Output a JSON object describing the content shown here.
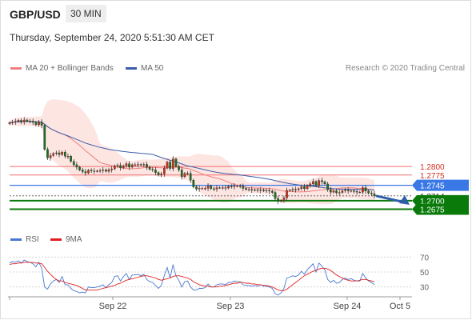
{
  "header": {
    "pair": "GBP/USD",
    "timeframe": "30 MIN",
    "datetime": "Thursday, September 24, 2020 5:51:30 AM CET",
    "credit": "Research © 2020 Trading Central"
  },
  "legends": {
    "ma20": "MA 20 + Bollinger Bands",
    "ma50": "MA 50",
    "rsi": "RSI",
    "ma9": "9MA"
  },
  "colors": {
    "candle_up": "#c7331b",
    "candle_down": "#1d6f1d",
    "ma20": "#f08080",
    "ma50": "#3b5ea8",
    "band_fill": "#fde2df",
    "resistance": "#f07070",
    "pivot": "#3a78e6",
    "support": "#0a7a0a",
    "rsi": "#4a78d0",
    "rsi_ma": "#e02020",
    "arrow": "#2f5ea8"
  },
  "chart_data": [
    {
      "type": "candlestick",
      "name": "GBP/USD 30 MIN price",
      "x_axis": {
        "ticks": [
          "Sep 22",
          "Sep 23",
          "Sep 24",
          "Oct 5"
        ]
      },
      "ylim": [
        1.262,
        1.306
      ],
      "levels": [
        {
          "label": "1.2800",
          "value": 1.28,
          "kind": "resistance"
        },
        {
          "label": "1.2775",
          "value": 1.2775,
          "kind": "resistance"
        },
        {
          "label": "1.2745",
          "value": 1.2745,
          "kind": "pivot"
        },
        {
          "label": "1.2714",
          "value": 1.2714,
          "kind": "last"
        },
        {
          "label": "1.2700",
          "value": 1.27,
          "kind": "support"
        },
        {
          "label": "1.2675",
          "value": 1.2675,
          "kind": "support"
        }
      ],
      "close": [
        1.2928,
        1.293,
        1.2932,
        1.2935,
        1.293,
        1.2936,
        1.2933,
        1.2932,
        1.2929,
        1.2922,
        1.293,
        1.292,
        1.285,
        1.2825,
        1.2832,
        1.2838,
        1.284,
        1.2835,
        1.2842,
        1.283,
        1.283,
        1.2815,
        1.2805,
        1.2798,
        1.279,
        1.2785,
        1.2781,
        1.2789,
        1.2787,
        1.2786,
        1.2787,
        1.2788,
        1.279,
        1.2786,
        1.279,
        1.2793,
        1.2802,
        1.2803,
        1.2796,
        1.2802,
        1.2808,
        1.2798,
        1.2805,
        1.2805,
        1.2806,
        1.2804,
        1.2806,
        1.2798,
        1.2792,
        1.279,
        1.2782,
        1.2775,
        1.2778,
        1.2795,
        1.2813,
        1.2794,
        1.2822,
        1.28,
        1.279,
        1.277,
        1.278,
        1.278,
        1.276,
        1.274,
        1.2734,
        1.2736,
        1.2736,
        1.2736,
        1.2743,
        1.2735,
        1.2734,
        1.2738,
        1.2738,
        1.2738,
        1.2737,
        1.2742,
        1.2741,
        1.2743,
        1.2743,
        1.2742,
        1.2736,
        1.2733,
        1.2733,
        1.2731,
        1.2732,
        1.273,
        1.2732,
        1.2729,
        1.273,
        1.2728,
        1.2724,
        1.2706,
        1.2698,
        1.27,
        1.2708,
        1.273,
        1.2731,
        1.2733,
        1.2732,
        1.2735,
        1.2741,
        1.2735,
        1.2744,
        1.2749,
        1.2756,
        1.2743,
        1.2759,
        1.2755,
        1.2749,
        1.2732,
        1.2725,
        1.2729,
        1.2723,
        1.2724,
        1.2729,
        1.2731,
        1.2728,
        1.2729,
        1.2727,
        1.2725,
        1.2725,
        1.2738,
        1.2728,
        1.2722,
        1.272,
        1.2714
      ]
    },
    {
      "type": "line",
      "name": "RSI",
      "ylim": [
        20,
        80
      ],
      "y_ticks": [
        30,
        50,
        70
      ],
      "x_axis": {
        "ticks": [
          "Sep 22",
          "Sep 23",
          "Sep 24",
          "Oct 5"
        ]
      },
      "series": [
        {
          "name": "RSI",
          "values": [
            62,
            64,
            63,
            65,
            62,
            66,
            64,
            63,
            61,
            57,
            63,
            55,
            30,
            27,
            34,
            38,
            40,
            36,
            44,
            33,
            33,
            28,
            25,
            24,
            22,
            23,
            22,
            30,
            29,
            29,
            30,
            31,
            33,
            29,
            33,
            36,
            44,
            45,
            38,
            44,
            48,
            40,
            46,
            46,
            47,
            45,
            47,
            40,
            37,
            36,
            32,
            28,
            32,
            45,
            56,
            42,
            60,
            45,
            39,
            30,
            37,
            38,
            30,
            26,
            26,
            28,
            28,
            29,
            34,
            30,
            30,
            33,
            34,
            34,
            33,
            36,
            36,
            38,
            37,
            37,
            33,
            32,
            32,
            31,
            32,
            31,
            33,
            31,
            31,
            30,
            28,
            21,
            19,
            22,
            28,
            42,
            43,
            45,
            44,
            46,
            51,
            47,
            53,
            57,
            61,
            50,
            62,
            58,
            53,
            40,
            36,
            39,
            35,
            36,
            40,
            42,
            40,
            41,
            39,
            38,
            38,
            48,
            42,
            38,
            36,
            33
          ]
        },
        {
          "name": "9MA",
          "values": [
            60,
            61,
            61,
            62,
            62,
            63,
            63,
            63,
            63,
            62,
            62,
            61,
            56,
            51,
            47,
            43,
            40,
            38,
            38,
            36,
            35,
            34,
            33,
            32,
            30,
            28,
            26,
            26,
            26,
            26,
            26,
            27,
            28,
            29,
            30,
            31,
            32,
            34,
            35,
            37,
            39,
            40,
            41,
            42,
            43,
            44,
            45,
            45,
            44,
            43,
            42,
            40,
            39,
            40,
            41,
            42,
            44,
            45,
            45,
            44,
            43,
            42,
            40,
            37,
            35,
            33,
            32,
            31,
            31,
            30,
            30,
            30,
            31,
            31,
            32,
            33,
            34,
            35,
            35,
            36,
            36,
            35,
            35,
            34,
            34,
            33,
            33,
            32,
            32,
            31,
            30,
            28,
            26,
            25,
            25,
            27,
            30,
            33,
            36,
            39,
            42,
            45,
            47,
            49,
            51,
            52,
            54,
            55,
            55,
            54,
            52,
            49,
            46,
            44,
            42,
            40,
            39,
            38,
            38,
            38,
            39,
            40,
            40,
            39,
            38,
            37
          ]
        }
      ]
    }
  ]
}
